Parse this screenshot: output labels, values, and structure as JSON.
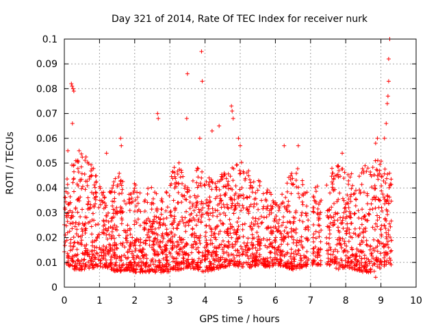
{
  "chart_data": {
    "type": "scatter",
    "title": "Day 321 of 2014, Rate Of TEC Index for receiver nurk",
    "xlabel": "GPS time / hours",
    "ylabel": "ROTI / TECUs",
    "xlim": [
      0,
      10
    ],
    "ylim": [
      0,
      0.1
    ],
    "grid": true,
    "marker": "+",
    "color": "#ff0000",
    "x_ticks": [
      "0",
      "1",
      "2",
      "3",
      "4",
      "5",
      "6",
      "7",
      "8",
      "9",
      "10"
    ],
    "y_ticks": [
      "0",
      "0.01",
      "0.02",
      "0.03",
      "0.04",
      "0.05",
      "0.06",
      "0.07",
      "0.08",
      "0.09",
      "0.1"
    ],
    "series": [
      {
        "name": "ROTI",
        "envelope": {
          "x": [
            0.0,
            0.3,
            0.6,
            0.9,
            1.0,
            1.2,
            1.5,
            1.8,
            2.0,
            2.3,
            2.5,
            2.8,
            3.0,
            3.3,
            3.5,
            3.8,
            4.0,
            4.3,
            4.5,
            4.8,
            5.0,
            5.3,
            5.5,
            5.8,
            6.0,
            6.3,
            6.5,
            6.8,
            7.0,
            7.3,
            7.5,
            7.8,
            8.0,
            8.3,
            8.5,
            8.8,
            9.0,
            9.3
          ],
          "low": [
            0.01,
            0.007,
            0.007,
            0.008,
            0.008,
            0.008,
            0.006,
            0.007,
            0.006,
            0.006,
            0.006,
            0.006,
            0.006,
            0.007,
            0.008,
            0.007,
            0.006,
            0.007,
            0.008,
            0.009,
            0.008,
            0.008,
            0.009,
            0.008,
            0.009,
            0.008,
            0.007,
            0.008,
            0.009,
            0.009,
            0.009,
            0.007,
            0.008,
            0.007,
            0.006,
            0.006,
            0.008,
            0.009
          ],
          "high": [
            0.046,
            0.052,
            0.055,
            0.047,
            0.042,
            0.036,
            0.048,
            0.038,
            0.042,
            0.04,
            0.041,
            0.035,
            0.047,
            0.052,
            0.042,
            0.049,
            0.047,
            0.042,
            0.046,
            0.05,
            0.052,
            0.046,
            0.048,
            0.04,
            0.036,
            0.04,
            0.052,
            0.044,
            0.037,
            0.045,
            0.048,
            0.05,
            0.046,
            0.048,
            0.049,
            0.052,
            0.052,
            0.045
          ]
        },
        "outliers": [
          [
            0.2,
            0.082
          ],
          [
            0.22,
            0.081
          ],
          [
            0.25,
            0.08
          ],
          [
            0.27,
            0.079
          ],
          [
            0.23,
            0.066
          ],
          [
            0.1,
            0.055
          ],
          [
            0.42,
            0.055
          ],
          [
            1.2,
            0.054
          ],
          [
            1.6,
            0.06
          ],
          [
            1.62,
            0.057
          ],
          [
            2.65,
            0.07
          ],
          [
            2.67,
            0.068
          ],
          [
            3.5,
            0.086
          ],
          [
            3.48,
            0.068
          ],
          [
            3.9,
            0.095
          ],
          [
            3.92,
            0.083
          ],
          [
            3.85,
            0.06
          ],
          [
            4.2,
            0.063
          ],
          [
            4.4,
            0.065
          ],
          [
            4.75,
            0.073
          ],
          [
            4.77,
            0.071
          ],
          [
            4.8,
            0.068
          ],
          [
            4.95,
            0.06
          ],
          [
            5.0,
            0.057
          ],
          [
            6.25,
            0.057
          ],
          [
            6.65,
            0.057
          ],
          [
            7.9,
            0.054
          ],
          [
            8.9,
            0.06
          ],
          [
            8.85,
            0.058
          ],
          [
            9.1,
            0.06
          ],
          [
            9.15,
            0.066
          ],
          [
            9.18,
            0.074
          ],
          [
            9.2,
            0.077
          ],
          [
            9.22,
            0.083
          ],
          [
            9.22,
            0.092
          ],
          [
            9.25,
            0.1
          ],
          [
            8.85,
            0.004
          ]
        ],
        "gaps": [
          [
            6.95,
            7.05
          ],
          [
            7.3,
            7.45
          ]
        ],
        "count": 2600,
        "x_range": [
          0.0,
          9.3
        ]
      }
    ]
  }
}
